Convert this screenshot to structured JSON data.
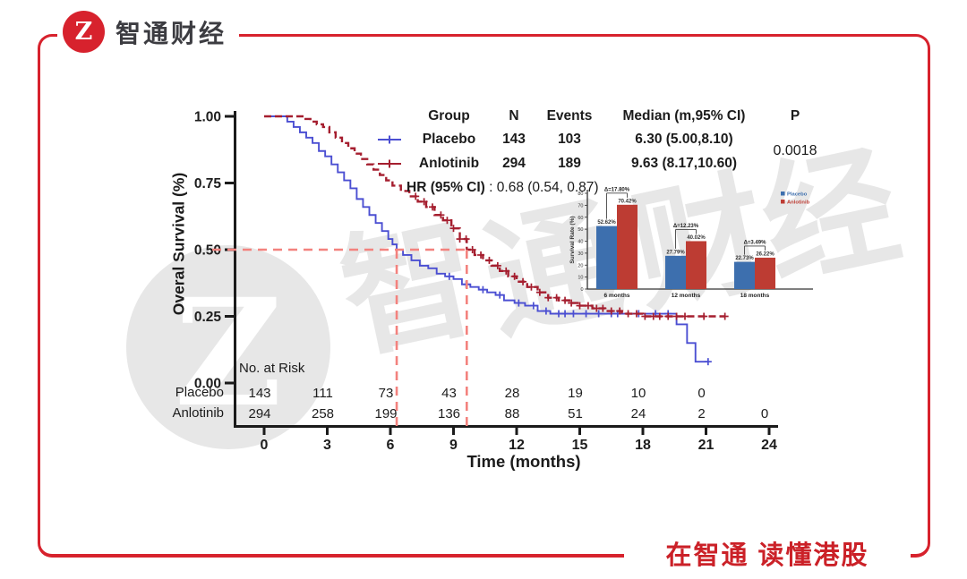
{
  "brand": {
    "logo_text": "智通财经",
    "logo_monogram": "Z",
    "slogan": "在智通 读懂港股"
  },
  "watermark": {
    "text": "智通财经",
    "monogram": "Z"
  },
  "colors": {
    "frame_red": "#d7222d",
    "brand_text": "#3c3c41",
    "slogan_red": "#cb2128",
    "placebo": "#4b4fd2",
    "anlotinib": "#a51e2f",
    "placebo_bar": "#3d6fae",
    "anlotinib_bar": "#bd3c33",
    "ref_dash": "#f3827e",
    "axis": "#1b1b1b",
    "watermark_gray": "#e7e7e7"
  },
  "chart_data": [
    {
      "type": "line",
      "subtype": "kaplan-meier",
      "ylabel": "Overal Survival (%)",
      "xlabel": "Time (months)",
      "xticks": [
        0,
        3,
        6,
        9,
        12,
        15,
        18,
        21,
        24
      ],
      "ytick_labels": [
        "1.00",
        "0.75",
        "0.50",
        "0.25",
        "0.00"
      ],
      "ylim": [
        0,
        1
      ],
      "xlim": [
        0,
        24.5
      ],
      "grid": false,
      "reference_lines": {
        "survival": 0.5,
        "median_placebo": 6.3,
        "median_anlotinib": 9.63
      },
      "series": [
        {
          "name": "Placebo",
          "style": "solid",
          "points": [
            [
              0,
              1.0
            ],
            [
              0.9,
              1.0
            ],
            [
              1.1,
              0.98
            ],
            [
              1.4,
              0.96
            ],
            [
              1.7,
              0.94
            ],
            [
              2.0,
              0.92
            ],
            [
              2.3,
              0.9
            ],
            [
              2.6,
              0.87
            ],
            [
              2.9,
              0.85
            ],
            [
              3.2,
              0.82
            ],
            [
              3.5,
              0.79
            ],
            [
              3.8,
              0.76
            ],
            [
              4.1,
              0.73
            ],
            [
              4.4,
              0.69
            ],
            [
              4.7,
              0.66
            ],
            [
              5.0,
              0.63
            ],
            [
              5.3,
              0.6
            ],
            [
              5.6,
              0.57
            ],
            [
              5.9,
              0.54
            ],
            [
              6.1,
              0.52
            ],
            [
              6.3,
              0.5
            ],
            [
              6.6,
              0.48
            ],
            [
              7.0,
              0.46
            ],
            [
              7.4,
              0.44
            ],
            [
              7.8,
              0.43
            ],
            [
              8.2,
              0.41
            ],
            [
              8.6,
              0.4
            ],
            [
              9.0,
              0.39
            ],
            [
              9.4,
              0.37
            ],
            [
              9.8,
              0.36
            ],
            [
              10.2,
              0.35
            ],
            [
              10.6,
              0.34
            ],
            [
              11.0,
              0.33
            ],
            [
              11.4,
              0.31
            ],
            [
              11.9,
              0.3
            ],
            [
              12.4,
              0.29
            ],
            [
              13.0,
              0.27
            ],
            [
              13.6,
              0.26
            ],
            [
              19.6,
              0.22
            ],
            [
              20.1,
              0.15
            ],
            [
              20.5,
              0.08
            ],
            [
              21.1,
              0.08
            ]
          ],
          "censor_months": [
            8.8,
            9.6,
            10.4,
            11.2,
            12.1,
            12.8,
            13.4,
            14.0,
            14.3,
            14.7,
            15.3,
            15.9,
            16.5,
            16.8,
            17.8,
            18.6,
            19.2,
            21.1
          ]
        },
        {
          "name": "Anlotinib",
          "style": "dashed",
          "points": [
            [
              0,
              1.0
            ],
            [
              1.6,
              1.0
            ],
            [
              1.9,
              0.99
            ],
            [
              2.2,
              0.98
            ],
            [
              2.5,
              0.97
            ],
            [
              2.8,
              0.96
            ],
            [
              3.1,
              0.94
            ],
            [
              3.4,
              0.92
            ],
            [
              3.7,
              0.9
            ],
            [
              4.0,
              0.88
            ],
            [
              4.3,
              0.86
            ],
            [
              4.6,
              0.84
            ],
            [
              4.9,
              0.82
            ],
            [
              5.2,
              0.8
            ],
            [
              5.5,
              0.78
            ],
            [
              5.8,
              0.76
            ],
            [
              6.1,
              0.74
            ],
            [
              6.5,
              0.72
            ],
            [
              6.9,
              0.7
            ],
            [
              7.3,
              0.68
            ],
            [
              7.7,
              0.66
            ],
            [
              8.1,
              0.63
            ],
            [
              8.5,
              0.61
            ],
            [
              8.9,
              0.58
            ],
            [
              9.3,
              0.54
            ],
            [
              9.63,
              0.5
            ],
            [
              10.0,
              0.48
            ],
            [
              10.4,
              0.46
            ],
            [
              10.8,
              0.44
            ],
            [
              11.2,
              0.42
            ],
            [
              11.6,
              0.4
            ],
            [
              12.0,
              0.38
            ],
            [
              12.5,
              0.36
            ],
            [
              13.0,
              0.34
            ],
            [
              13.5,
              0.32
            ],
            [
              14.0,
              0.31
            ],
            [
              14.5,
              0.3
            ],
            [
              15.0,
              0.29
            ],
            [
              15.6,
              0.28
            ],
            [
              16.2,
              0.27
            ],
            [
              17.0,
              0.26
            ],
            [
              18.0,
              0.25
            ],
            [
              21.9,
              0.25
            ]
          ],
          "censor_months": [
            7.2,
            7.6,
            8.0,
            8.4,
            8.7,
            9.0,
            9.3,
            9.6,
            9.9,
            10.3,
            10.7,
            11.1,
            11.5,
            11.9,
            12.3,
            12.7,
            13.1,
            13.5,
            13.9,
            14.3,
            14.6,
            15.0,
            15.4,
            15.8,
            16.1,
            16.5,
            16.9,
            17.3,
            17.7,
            18.1,
            18.5,
            18.8,
            19.2,
            19.6,
            20.0,
            20.9,
            21.9
          ]
        }
      ],
      "legend_table": {
        "headers": [
          "Group",
          "N",
          "Events",
          "Median (m,95% CI)",
          "P"
        ],
        "rows": [
          {
            "group": "Placebo",
            "n": "143",
            "events": "103",
            "median": "6.30 (5.00,8.10)"
          },
          {
            "group": "Anlotinib",
            "n": "294",
            "events": "189",
            "median": "9.63 (8.17,10.60)"
          }
        ],
        "p_value": "0.0018",
        "hr_label": "HR (95% CI)",
        "hr_value": ": 0.68 (0.54, 0.87)"
      },
      "risk_table": {
        "title": "No. at Risk",
        "rows": [
          {
            "label": "Placebo",
            "values": [
              143,
              111,
              73,
              43,
              28,
              19,
              10,
              0
            ]
          },
          {
            "label": "Anlotinib",
            "values": [
              294,
              258,
              199,
              136,
              88,
              51,
              24,
              2,
              0
            ]
          }
        ]
      }
    },
    {
      "type": "bar",
      "ylabel": "Survival Rate (%)",
      "categories": [
        "6 months",
        "12 months",
        "18 months"
      ],
      "series": [
        {
          "name": "Placebo",
          "values": [
            52.62,
            27.79,
            22.73
          ]
        },
        {
          "name": "Anlotinib",
          "values": [
            70.42,
            40.02,
            26.22
          ]
        }
      ],
      "value_labels": [
        [
          "52.62%",
          "70.42%"
        ],
        [
          "27.79%",
          "40.02%"
        ],
        [
          "22.73%",
          "26.22%"
        ]
      ],
      "delta_labels": [
        "Δ=17.80%",
        "Δ=12.23%",
        "Δ=3.49%"
      ],
      "ylim": [
        0,
        80
      ],
      "yticks": [
        0,
        10,
        20,
        30,
        40,
        50,
        60,
        70,
        80
      ],
      "legend_position": "top-right"
    }
  ]
}
